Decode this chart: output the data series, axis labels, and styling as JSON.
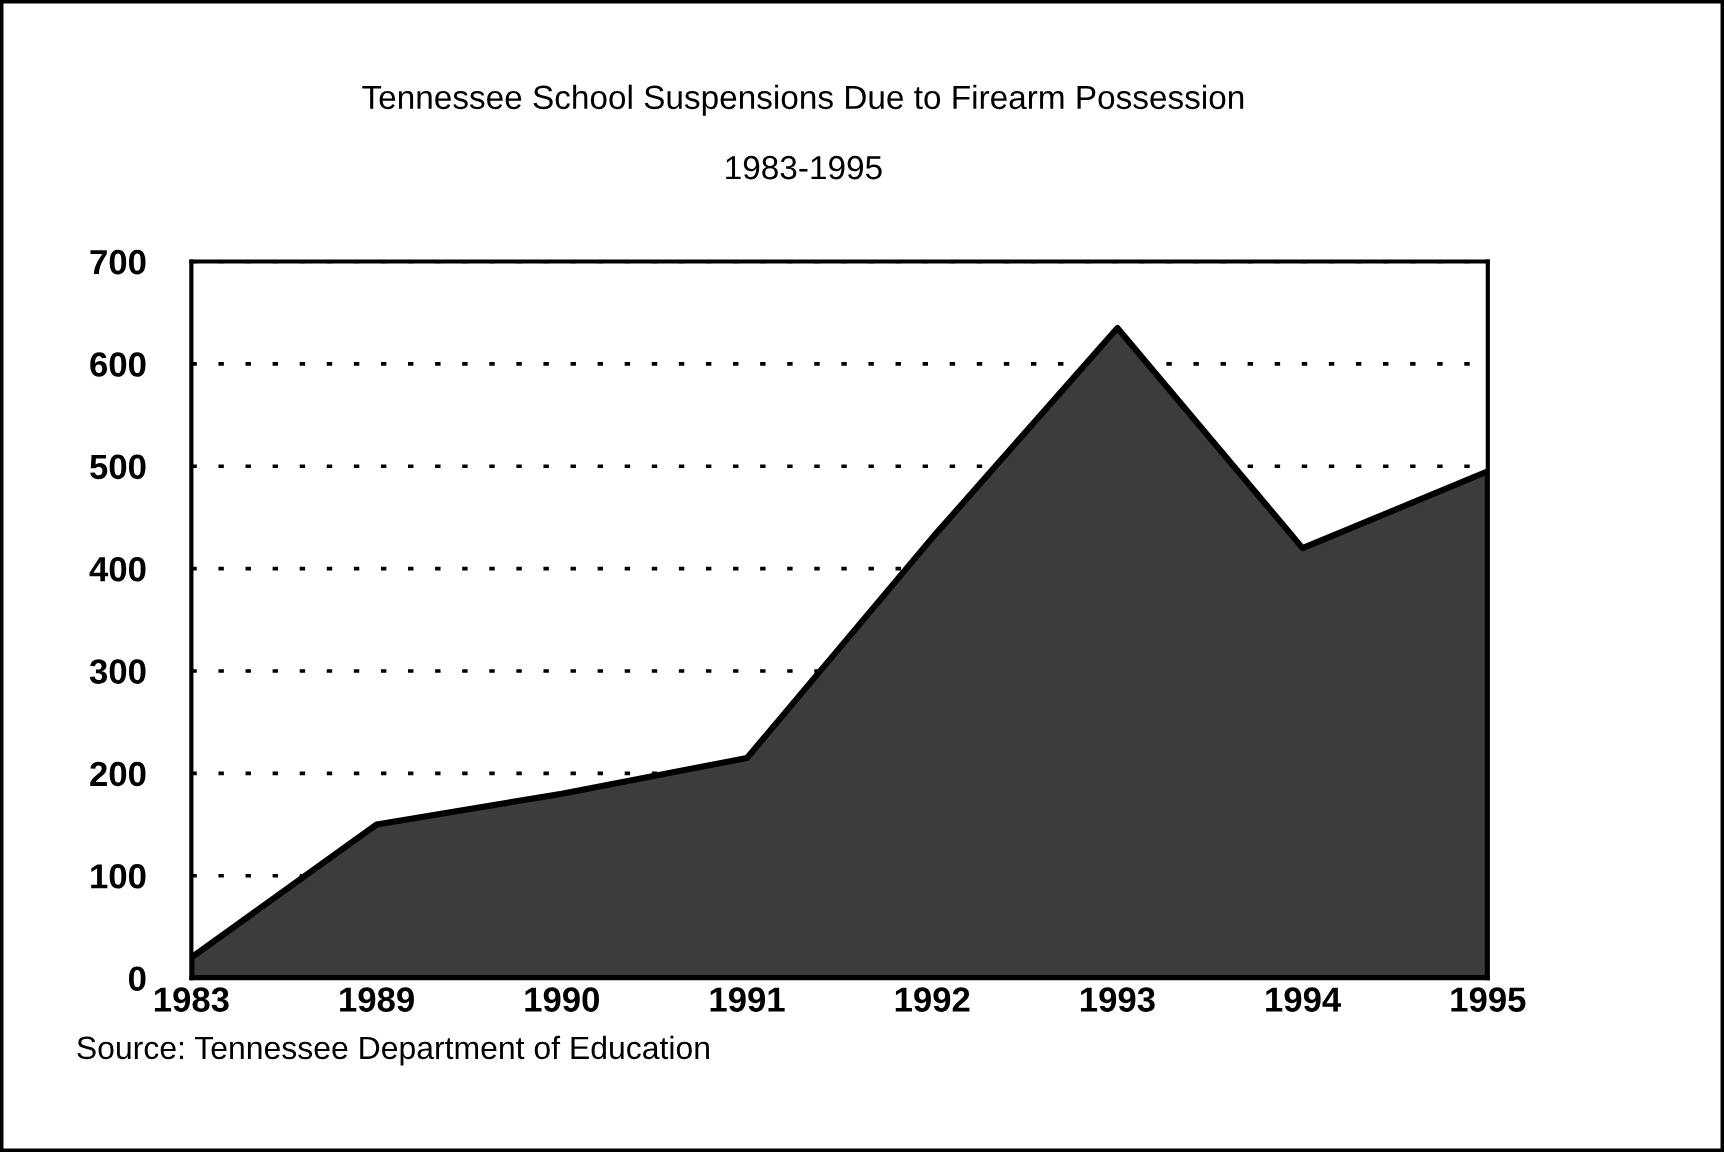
{
  "chart_data": {
    "type": "area",
    "title": "Tennessee School Suspensions Due to Firearm Possession",
    "subtitle": "1983-1995",
    "categories": [
      "1983",
      "1989",
      "1990",
      "1991",
      "1992",
      "1993",
      "1994",
      "1995"
    ],
    "series": [
      {
        "color": "#3c3c3c",
        "values": [
          20,
          150,
          180,
          215,
          430,
          635,
          420,
          495
        ]
      }
    ],
    "ylim": [
      0,
      700
    ],
    "yticks": [
      0,
      100,
      200,
      300,
      400,
      500,
      600,
      700
    ],
    "grid": "y",
    "line_style": "solid",
    "annotations": [
      "Source: Tennessee Department of Education"
    ]
  }
}
